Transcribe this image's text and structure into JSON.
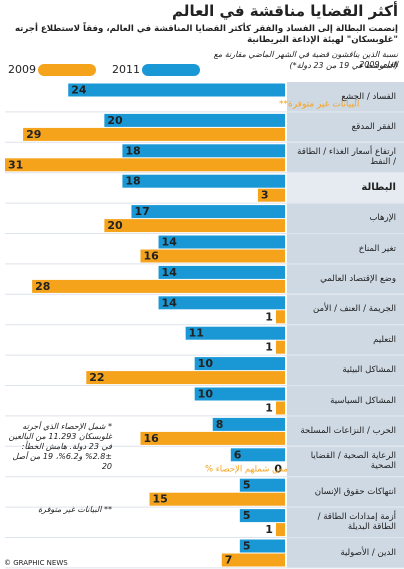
{
  "chart_data": {
    "type": "bar",
    "title": "أكثر القضايا مناقشة في العالم",
    "subtitle": "إنضمت البطالة إلى الفساد والفقر كأكثر القضايا المناقشة في العالم، وفقاً لاستطلاع أجرته \"غلوبسكان\" لهيئة الإذاعة البريطانية",
    "note": "نسبة الذين يناقشون قضية في الشهر الماضي مقارنة مع العام 2009",
    "note2": "(المتوسط في 19 من 23 دولة*)",
    "categories": [
      "الفساد / الجشع",
      "الفقر المدقع",
      "ارتفاع أسعار الغذاء / الطاقة / النفط",
      "البطالة",
      "الإرهاب",
      "تغير المناخ",
      "وضع الإقتصاد العالمي",
      "الجريمة / العنف / الأمن",
      "التعليم",
      "المشاكل البيئية",
      "المشاكل السياسية",
      "الحرب / النزاعات المسلحة",
      "الرعاية الصحية / القضايا الصحية",
      "انتهاكات حقوق الإنسان",
      "أزمة إمدادات الطاقة / الطاقة البديلة",
      "الدين / الأصولية"
    ],
    "highlight": 3,
    "series": [
      {
        "name": "2011",
        "color": "#1a98d5",
        "values": [
          24,
          20,
          18,
          18,
          17,
          14,
          14,
          14,
          11,
          10,
          10,
          8,
          6,
          5,
          5,
          5
        ]
      },
      {
        "name": "2009",
        "color": "#f6a31c",
        "values": [
          null,
          29,
          31,
          3,
          20,
          16,
          28,
          1,
          1,
          22,
          1,
          16,
          0,
          15,
          1,
          7
        ]
      }
    ],
    "missing_label": "البيانات غير متوفرة**",
    "unit_label": "ممن شملهم الإحصاء %",
    "footnotes": [
      "* شمل الإحصاء الذي أجرته غلوبسكان 11.293 من البالغين في 23 دولة. هامش الخطأ: ±2.8% و6.2%، 19 من أصل 20",
      "** البيانات غير متوفرة"
    ],
    "source": "© GRAPHIC NEWS"
  }
}
